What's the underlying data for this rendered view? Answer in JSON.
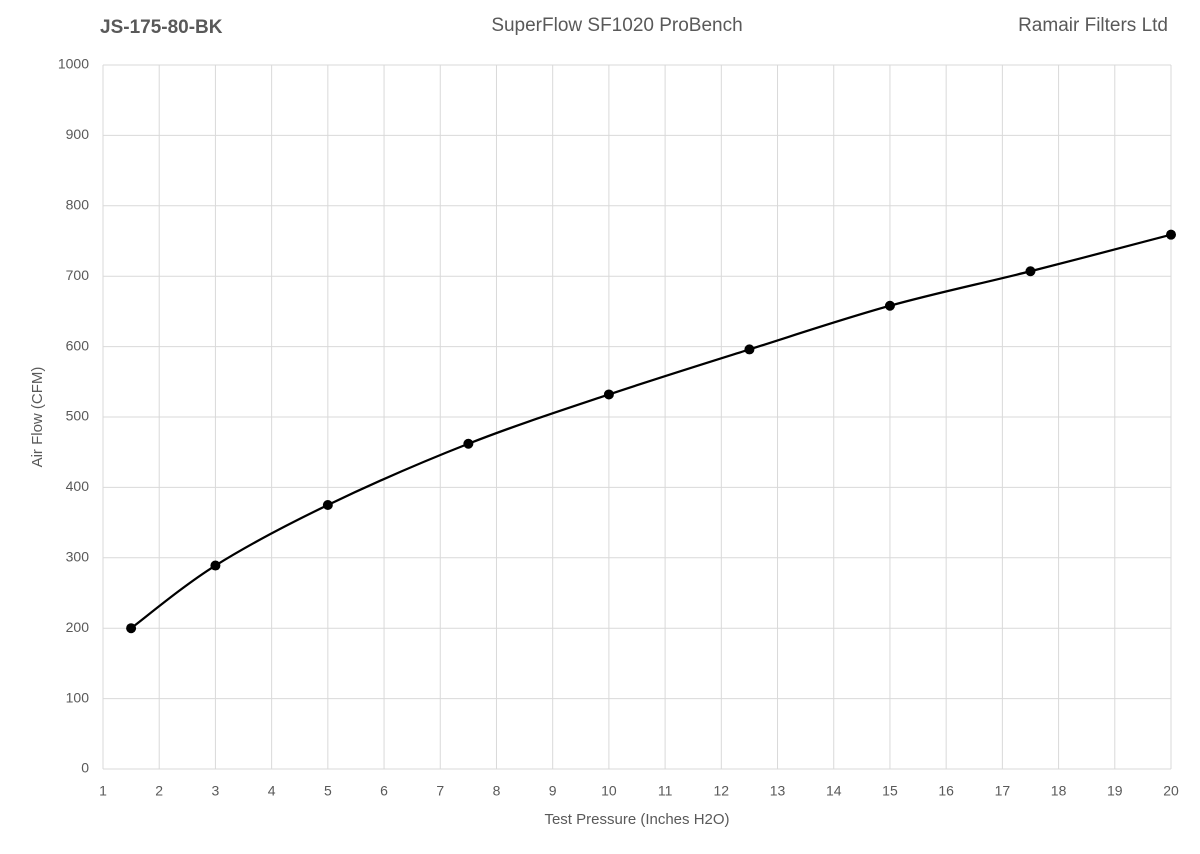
{
  "chart_data": {
    "type": "line",
    "title": "SuperFlow SF1020 ProBench",
    "header_left": "JS-175-80-BK",
    "header_right": "Ramair Filters Ltd",
    "x_label": "Test Pressure (Inches H2O)",
    "y_label": "Air Flow (CFM)",
    "x": [
      1.5,
      3,
      5,
      7.5,
      10,
      12.5,
      15,
      17.5,
      20
    ],
    "series": [
      {
        "color": "#000000",
        "values": [
          200,
          289,
          375,
          462,
          532,
          596,
          658,
          707,
          759
        ]
      }
    ],
    "xlim": [
      1,
      20
    ],
    "xticks": [
      1,
      2,
      3,
      4,
      5,
      6,
      7,
      8,
      9,
      10,
      11,
      12,
      13,
      14,
      15,
      16,
      17,
      18,
      19,
      20
    ],
    "ylim": [
      0,
      1000
    ],
    "yticks": [
      0,
      100,
      200,
      300,
      400,
      500,
      600,
      700,
      800,
      900,
      1000
    ],
    "grid": true,
    "smooth": true,
    "markers": true
  }
}
